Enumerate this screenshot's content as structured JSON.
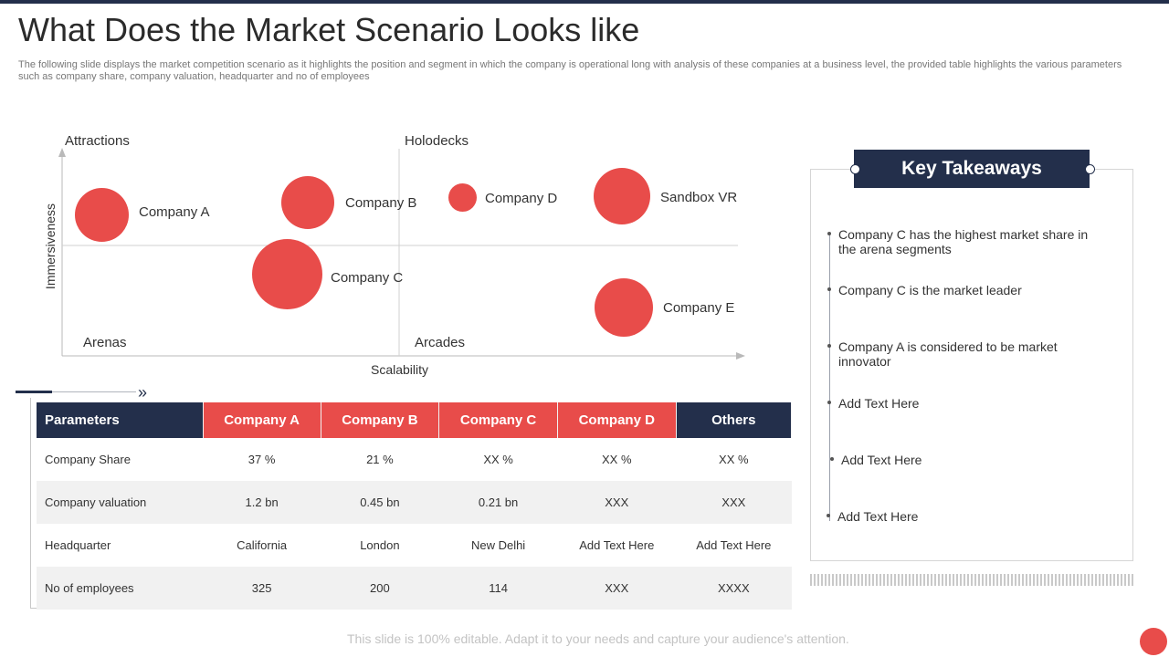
{
  "title": "What Does the Market Scenario Looks like",
  "subtitle": "The following slide displays the market competition scenario as it highlights the position and segment in which the company is operational long with analysis of these companies at a business level, the provided table highlights the various parameters such as company share, company valuation, headquarter and no of employees",
  "quadrant": {
    "quadrants": {
      "top_left": "Attractions",
      "top_right": "Holodecks",
      "bottom_left": "Arenas",
      "bottom_right": "Arcades"
    },
    "x_axis": "Scalability",
    "y_axis": "Immersiveness",
    "companies": [
      {
        "name": "Company A"
      },
      {
        "name": "Company B"
      },
      {
        "name": "Company C"
      },
      {
        "name": "Company D"
      },
      {
        "name": "Sandbox VR"
      },
      {
        "name": "Company E"
      }
    ]
  },
  "table": {
    "headers": [
      "Parameters",
      "Company A",
      "Company B",
      "Company C",
      "Company D",
      "Others"
    ],
    "rows": [
      [
        "Company Share",
        "37 %",
        "21 %",
        "XX  %",
        "XX  %",
        "XX  %"
      ],
      [
        "Company valuation",
        "1.2 bn",
        "0.45 bn",
        "0.21 bn",
        "XXX",
        "XXX"
      ],
      [
        "Headquarter",
        "California",
        "London",
        "New Delhi",
        "Add Text Here",
        "Add Text Here"
      ],
      [
        "No of employees",
        "325",
        "200",
        "114",
        "XXX",
        "XXXX"
      ]
    ]
  },
  "key_takeaways": {
    "title": "Key Takeaways",
    "items": [
      "Company C has the highest market share in the arena segments",
      "Company C is the market leader",
      "Company A is considered to be market innovator",
      "Add Text Here",
      "Add Text Here",
      "Add Text Here"
    ]
  },
  "footer": "This slide is 100% editable. Adapt it to your needs and capture your audience's attention.",
  "colors": {
    "navy": "#232f4b",
    "red": "#e84c4a",
    "row_alt": "#f1f1f1"
  },
  "icons": {
    "chevron": "double-chevron-right-icon"
  }
}
